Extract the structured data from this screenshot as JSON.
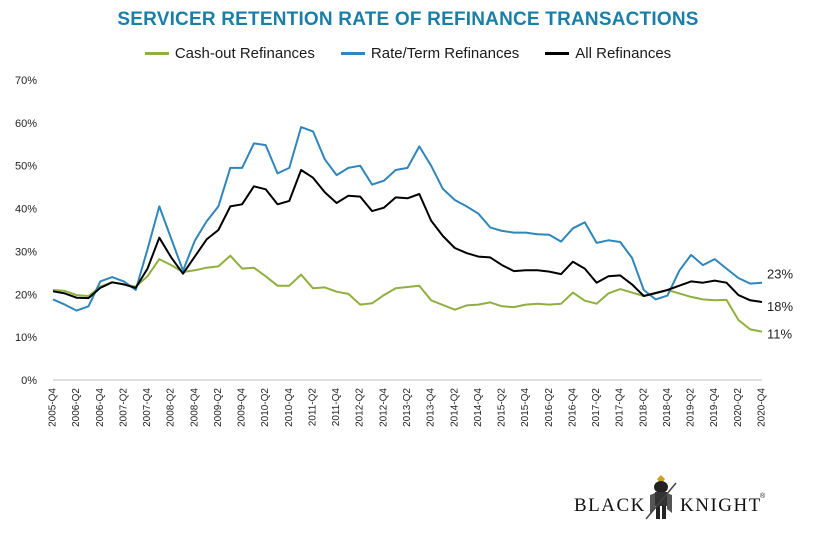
{
  "colors": {
    "cashout": "#8faf3f",
    "rateterm": "#2f86ba",
    "all": "#000000",
    "title": "#1a7fa8"
  },
  "chart_data": {
    "type": "line",
    "title": "SERVICER RETENTION RATE OF REFINANCE TRANSACTIONS",
    "xlabel": "",
    "ylabel": "",
    "ylim": [
      0,
      70
    ],
    "yticks": [
      "0%",
      "10%",
      "20%",
      "30%",
      "40%",
      "50%",
      "60%",
      "70%"
    ],
    "legend_position": "top-center",
    "x": [
      "2005-Q4",
      "2006-Q1",
      "2006-Q2",
      "2006-Q3",
      "2006-Q4",
      "2007-Q1",
      "2007-Q2",
      "2007-Q3",
      "2007-Q4",
      "2008-Q1",
      "2008-Q2",
      "2008-Q3",
      "2008-Q4",
      "2009-Q1",
      "2009-Q2",
      "2009-Q3",
      "2009-Q4",
      "2010-Q1",
      "2010-Q2",
      "2010-Q3",
      "2010-Q4",
      "2011-Q1",
      "2011-Q2",
      "2011-Q3",
      "2011-Q4",
      "2012-Q1",
      "2012-Q2",
      "2012-Q3",
      "2012-Q4",
      "2013-Q1",
      "2013-Q2",
      "2013-Q3",
      "2013-Q4",
      "2014-Q1",
      "2014-Q2",
      "2014-Q3",
      "2014-Q4",
      "2015-Q1",
      "2015-Q2",
      "2015-Q3",
      "2015-Q4",
      "2016-Q1",
      "2016-Q2",
      "2016-Q3",
      "2016-Q4",
      "2017-Q1",
      "2017-Q2",
      "2017-Q3",
      "2017-Q4",
      "2018-Q1",
      "2018-Q2",
      "2018-Q3",
      "2018-Q4",
      "2019-Q1",
      "2019-Q2",
      "2019-Q3",
      "2019-Q4",
      "2020-Q1",
      "2020-Q2",
      "2020-Q3",
      "2020-Q4"
    ],
    "tick_labels": [
      "2005-Q4",
      "2006-Q2",
      "2006-Q4",
      "2007-Q2",
      "2007-Q4",
      "2008-Q2",
      "2008-Q4",
      "2009-Q2",
      "2009-Q4",
      "2010-Q2",
      "2010-Q4",
      "2011-Q2",
      "2011-Q4",
      "2012-Q2",
      "2012-Q4",
      "2013-Q2",
      "2013-Q4",
      "2014-Q2",
      "2014-Q4",
      "2015-Q2",
      "2015-Q4",
      "2016-Q2",
      "2016-Q4",
      "2017-Q2",
      "2017-Q4",
      "2018-Q2",
      "2018-Q4",
      "2019-Q2",
      "2019-Q4",
      "2020-Q2",
      "2020-Q4"
    ],
    "series": [
      {
        "key": "cashout",
        "name": "Cash-out Refinances",
        "end_label": "11%",
        "values": [
          21,
          20.8,
          19.8,
          19.6,
          21.8,
          22.8,
          22.3,
          21.8,
          24.2,
          28.2,
          26.8,
          25.2,
          25.6,
          26.2,
          26.5,
          29,
          26,
          26.2,
          24.2,
          22,
          22,
          24.6,
          21.4,
          21.6,
          20.6,
          20.1,
          17.6,
          17.9,
          19.8,
          21.4,
          21.7,
          22,
          18.6,
          17.5,
          16.4,
          17.4,
          17.6,
          18.1,
          17.2,
          17,
          17.6,
          17.8,
          17.6,
          17.8,
          20.4,
          18.5,
          17.8,
          20.2,
          21.2,
          20.4,
          19.6,
          20.2,
          21,
          20.2,
          19.4,
          18.8,
          18.6,
          18.7,
          14,
          11.8,
          11.3
        ]
      },
      {
        "key": "rateterm",
        "name": "Rate/Term Refinances",
        "end_label": "23%",
        "values": [
          18.8,
          17.6,
          16.2,
          17.2,
          23,
          24,
          23,
          21,
          30.5,
          40.5,
          33,
          25.5,
          32.5,
          37,
          40.5,
          49.5,
          49.5,
          55.2,
          54.8,
          48.2,
          49.5,
          59,
          58,
          51.5,
          47.8,
          49.5,
          50,
          45.6,
          46.5,
          49,
          49.5,
          54.5,
          50,
          44.6,
          42,
          40.5,
          38.8,
          35.6,
          34.8,
          34.4,
          34.4,
          34,
          33.9,
          32.3,
          35.4,
          36.8,
          32,
          32.6,
          32.2,
          28.5,
          21,
          18.8,
          19.7,
          25.5,
          29.2,
          26.8,
          28.2,
          26,
          23.8,
          22.5,
          22.7
        ]
      },
      {
        "key": "all",
        "name": "All Refinances",
        "end_label": "18%",
        "values": [
          20.7,
          20.2,
          19.2,
          19.1,
          21.5,
          22.8,
          22.3,
          21.5,
          26,
          33.2,
          28.6,
          24.8,
          28.8,
          32.8,
          35,
          40.5,
          41,
          45.2,
          44.5,
          41,
          41.8,
          49,
          47.2,
          43.8,
          41.3,
          43,
          42.8,
          39.4,
          40.2,
          42.6,
          42.4,
          43.4,
          37.2,
          33.6,
          30.8,
          29.6,
          28.8,
          28.6,
          26.8,
          25.4,
          25.6,
          25.6,
          25.3,
          24.7,
          27.6,
          26,
          22.7,
          24.2,
          24.4,
          22.3,
          19.6,
          20.3,
          21,
          22,
          23,
          22.7,
          23.2,
          22.7,
          19.8,
          18.6,
          18.2
        ]
      }
    ]
  },
  "logo": {
    "word_left": "BLACK",
    "word_right": "KNIGHT",
    "trademark": "®"
  }
}
